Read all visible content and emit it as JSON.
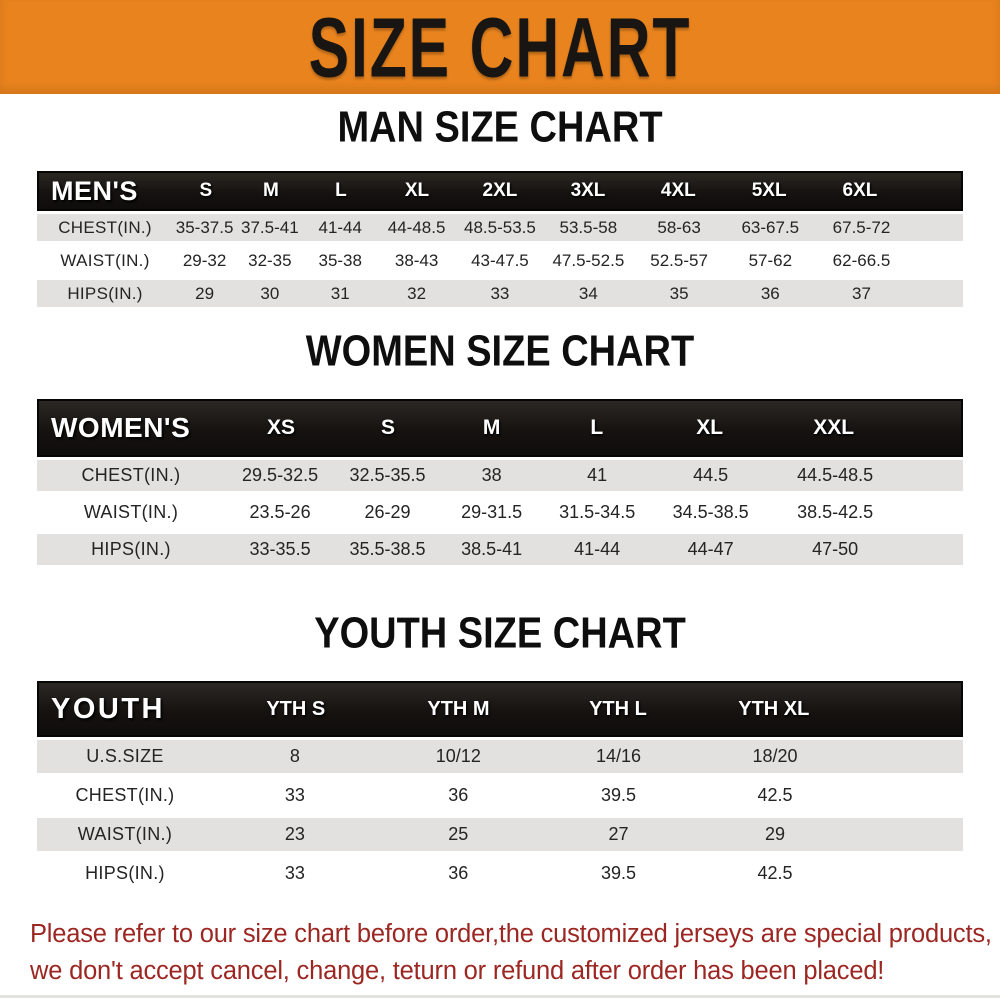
{
  "banner": {
    "title": "SIZE CHART",
    "bg_color": "#E8831E",
    "text_color": "#181512"
  },
  "chart_data": [
    {
      "type": "table",
      "id": "men",
      "title": "MAN SIZE CHART",
      "header_label": "MEN'S",
      "columns": [
        "S",
        "M",
        "L",
        "XL",
        "2XL",
        "3XL",
        "4XL",
        "5XL",
        "6XL"
      ],
      "rows": [
        {
          "label": "CHEST(IN.)",
          "values": [
            "35-37.5",
            "37.5-41",
            "41-44",
            "44-48.5",
            "48.5-53.5",
            "53.5-58",
            "58-63",
            "63-67.5",
            "67.5-72"
          ]
        },
        {
          "label": "WAIST(IN.)",
          "values": [
            "29-32",
            "32-35",
            "35-38",
            "38-43",
            "43-47.5",
            "47.5-52.5",
            "52.5-57",
            "57-62",
            "62-66.5"
          ]
        },
        {
          "label": "HIPS(IN.)",
          "values": [
            "29",
            "30",
            "31",
            "32",
            "33",
            "34",
            "35",
            "36",
            "37"
          ]
        }
      ]
    },
    {
      "type": "table",
      "id": "women",
      "title": "WOMEN SIZE CHART",
      "header_label": "WOMEN'S",
      "columns": [
        "XS",
        "S",
        "M",
        "L",
        "XL",
        "XXL"
      ],
      "rows": [
        {
          "label": "CHEST(IN.)",
          "values": [
            "29.5-32.5",
            "32.5-35.5",
            "38",
            "41",
            "44.5",
            "44.5-48.5"
          ]
        },
        {
          "label": "WAIST(IN.)",
          "values": [
            "23.5-26",
            "26-29",
            "29-31.5",
            "31.5-34.5",
            "34.5-38.5",
            "38.5-42.5"
          ]
        },
        {
          "label": "HIPS(IN.)",
          "values": [
            "33-35.5",
            "35.5-38.5",
            "38.5-41",
            "41-44",
            "44-47",
            "47-50"
          ]
        }
      ]
    },
    {
      "type": "table",
      "id": "youth",
      "title": "YOUTH SIZE CHART",
      "header_label": "YOUTH",
      "columns": [
        "YTH S",
        "YTH M",
        "YTH L",
        "YTH XL"
      ],
      "rows": [
        {
          "label": "U.S.SIZE",
          "values": [
            "8",
            "10/12",
            "14/16",
            "18/20"
          ]
        },
        {
          "label": "CHEST(IN.)",
          "values": [
            "33",
            "36",
            "39.5",
            "42.5"
          ]
        },
        {
          "label": "WAIST(IN.)",
          "values": [
            "23",
            "25",
            "27",
            "29"
          ]
        },
        {
          "label": "HIPS(IN.)",
          "values": [
            "33",
            "36",
            "39.5",
            "42.5"
          ]
        }
      ]
    }
  ],
  "footer": {
    "line1": "Please refer to our size chart before order,the customized jerseys are special products,",
    "line2": "we don't accept cancel, change, teturn or refund after order has been placed!",
    "text_color": "#9C2722"
  }
}
